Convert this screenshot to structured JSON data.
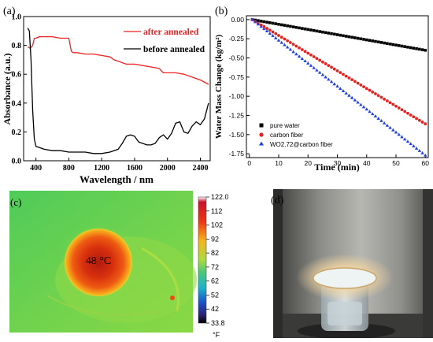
{
  "chart_data": [
    {
      "panel": "(a)",
      "type": "line",
      "xlabel": "Wavelength / nm",
      "ylabel": "Absorbance (a.u.)",
      "xlim": [
        250,
        2520
      ],
      "ylim": [
        0.0,
        1.0
      ],
      "xticks": [
        400,
        800,
        1200,
        1600,
        2000,
        2400
      ],
      "yticks": [
        0.0,
        0.2,
        0.4,
        0.6,
        0.8,
        1.0
      ],
      "legend_position": "top-right",
      "series": [
        {
          "name": "after annealed",
          "color": "#ee2222",
          "x": [
            300,
            330,
            360,
            380,
            400,
            440,
            500,
            600,
            700,
            780,
            800,
            830,
            850,
            900,
            1000,
            1100,
            1200,
            1300,
            1350,
            1400,
            1450,
            1500,
            1600,
            1700,
            1800,
            1900,
            1950,
            2000,
            2100,
            2200,
            2300,
            2400,
            2500
          ],
          "y": [
            0.79,
            0.78,
            0.8,
            0.85,
            0.85,
            0.86,
            0.86,
            0.86,
            0.85,
            0.85,
            0.85,
            0.76,
            0.75,
            0.75,
            0.74,
            0.74,
            0.73,
            0.72,
            0.7,
            0.69,
            0.68,
            0.67,
            0.67,
            0.66,
            0.65,
            0.64,
            0.61,
            0.61,
            0.61,
            0.6,
            0.58,
            0.56,
            0.53
          ]
        },
        {
          "name": "before annealed",
          "color": "#000000",
          "x": [
            300,
            320,
            340,
            360,
            380,
            400,
            450,
            500,
            600,
            700,
            800,
            900,
            1000,
            1100,
            1200,
            1300,
            1350,
            1400,
            1450,
            1500,
            1550,
            1600,
            1650,
            1700,
            1750,
            1800,
            1850,
            1900,
            1950,
            2000,
            2050,
            2100,
            2150,
            2200,
            2250,
            2300,
            2350,
            2400,
            2450,
            2500
          ],
          "y": [
            0.92,
            0.9,
            0.7,
            0.35,
            0.15,
            0.1,
            0.09,
            0.08,
            0.07,
            0.07,
            0.06,
            0.06,
            0.06,
            0.05,
            0.05,
            0.06,
            0.07,
            0.08,
            0.12,
            0.17,
            0.18,
            0.17,
            0.13,
            0.12,
            0.11,
            0.11,
            0.12,
            0.16,
            0.18,
            0.15,
            0.19,
            0.26,
            0.27,
            0.2,
            0.19,
            0.24,
            0.27,
            0.25,
            0.29,
            0.4
          ]
        }
      ]
    },
    {
      "panel": "(b)",
      "type": "scatter",
      "xlabel": "Time (min)",
      "ylabel": "Water Mass Change (kg/m²)",
      "xlim": [
        -1,
        61
      ],
      "ylim": [
        -1.8,
        0.05
      ],
      "xticks": [
        0,
        10,
        20,
        30,
        40,
        50,
        60
      ],
      "yticks": [
        0.0,
        -0.25,
        -0.5,
        -0.75,
        -1.0,
        -1.25,
        -1.5,
        -1.75
      ],
      "legend_position": "bottom-left",
      "series": [
        {
          "name": "pure water",
          "color": "#000000",
          "marker": "square",
          "x_start": 1,
          "x_end": 60,
          "y_start": 0.0,
          "y_end": -0.4
        },
        {
          "name": "carbon fiber",
          "color": "#e8211e",
          "marker": "circle",
          "x_start": 1,
          "x_end": 60,
          "y_start": 0.0,
          "y_end": -1.36
        },
        {
          "name": "WO2.72@carbon fiber",
          "color": "#1f3fe8",
          "marker": "triangle",
          "x_start": 1,
          "x_end": 60,
          "y_start": 0.0,
          "y_end": -1.77
        }
      ]
    }
  ],
  "panel_c": {
    "label": "(c)",
    "hotspot_label": "48 °C",
    "colorbar_ticks": [
      "122.0",
      "112",
      "102",
      "92",
      "82",
      "72",
      "62",
      "52",
      "42",
      "33.8"
    ],
    "colorbar_unit": "°F"
  },
  "panel_d": {
    "label": "(d)"
  }
}
